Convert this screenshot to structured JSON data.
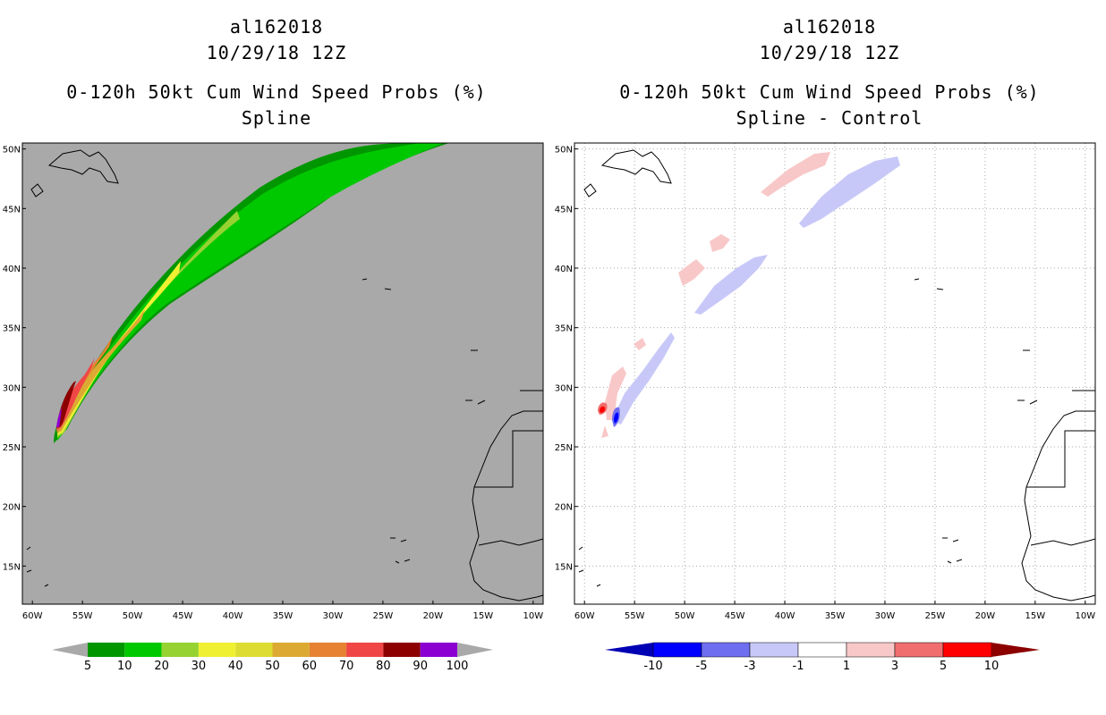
{
  "chart_data": [
    {
      "type": "heatmap",
      "title": "al162018",
      "subtitle": "10/29/18 12Z",
      "description_line1": "0-120h 50kt Cum Wind Speed Probs (%)",
      "description_line2": "Spline",
      "x_ticks": [
        "60W",
        "55W",
        "50W",
        "45W",
        "40W",
        "35W",
        "30W",
        "25W",
        "20W",
        "15W",
        "10W"
      ],
      "y_ticks": [
        "50N",
        "45N",
        "40N",
        "35N",
        "30N",
        "25N",
        "20N",
        "15N"
      ],
      "xlim": [
        -61,
        -9
      ],
      "ylim": [
        11.8,
        50.5
      ],
      "colorbar": {
        "labels": [
          "5",
          "10",
          "20",
          "30",
          "40",
          "50",
          "60",
          "70",
          "80",
          "90",
          "100"
        ],
        "colors": [
          "#009600",
          "#00c800",
          "#96d232",
          "#f0f032",
          "#dcdc32",
          "#dcaa32",
          "#e68232",
          "#f04646",
          "#8c0000",
          "#8c00d2"
        ]
      }
    },
    {
      "type": "heatmap",
      "title": "al162018",
      "subtitle": "10/29/18 12Z",
      "description_line1": "0-120h 50kt Cum Wind Speed Probs (%)",
      "description_line2": "Spline - Control",
      "x_ticks": [
        "60W",
        "55W",
        "50W",
        "45W",
        "40W",
        "35W",
        "30W",
        "25W",
        "20W",
        "15W",
        "10W"
      ],
      "y_ticks": [
        "50N",
        "45N",
        "40N",
        "35N",
        "30N",
        "25N",
        "20N",
        "15N"
      ],
      "xlim": [
        -61,
        -9
      ],
      "ylim": [
        11.8,
        50.5
      ],
      "colorbar": {
        "labels": [
          "-10",
          "-5",
          "-3",
          "-1",
          "1",
          "3",
          "5",
          "10"
        ],
        "colors": [
          "#0000b4",
          "#0000ff",
          "#6e6ef0",
          "#c8c8f8",
          "#ffffff",
          "#f8c8c8",
          "#f06e6e",
          "#ff0000",
          "#8c0000"
        ]
      }
    }
  ]
}
